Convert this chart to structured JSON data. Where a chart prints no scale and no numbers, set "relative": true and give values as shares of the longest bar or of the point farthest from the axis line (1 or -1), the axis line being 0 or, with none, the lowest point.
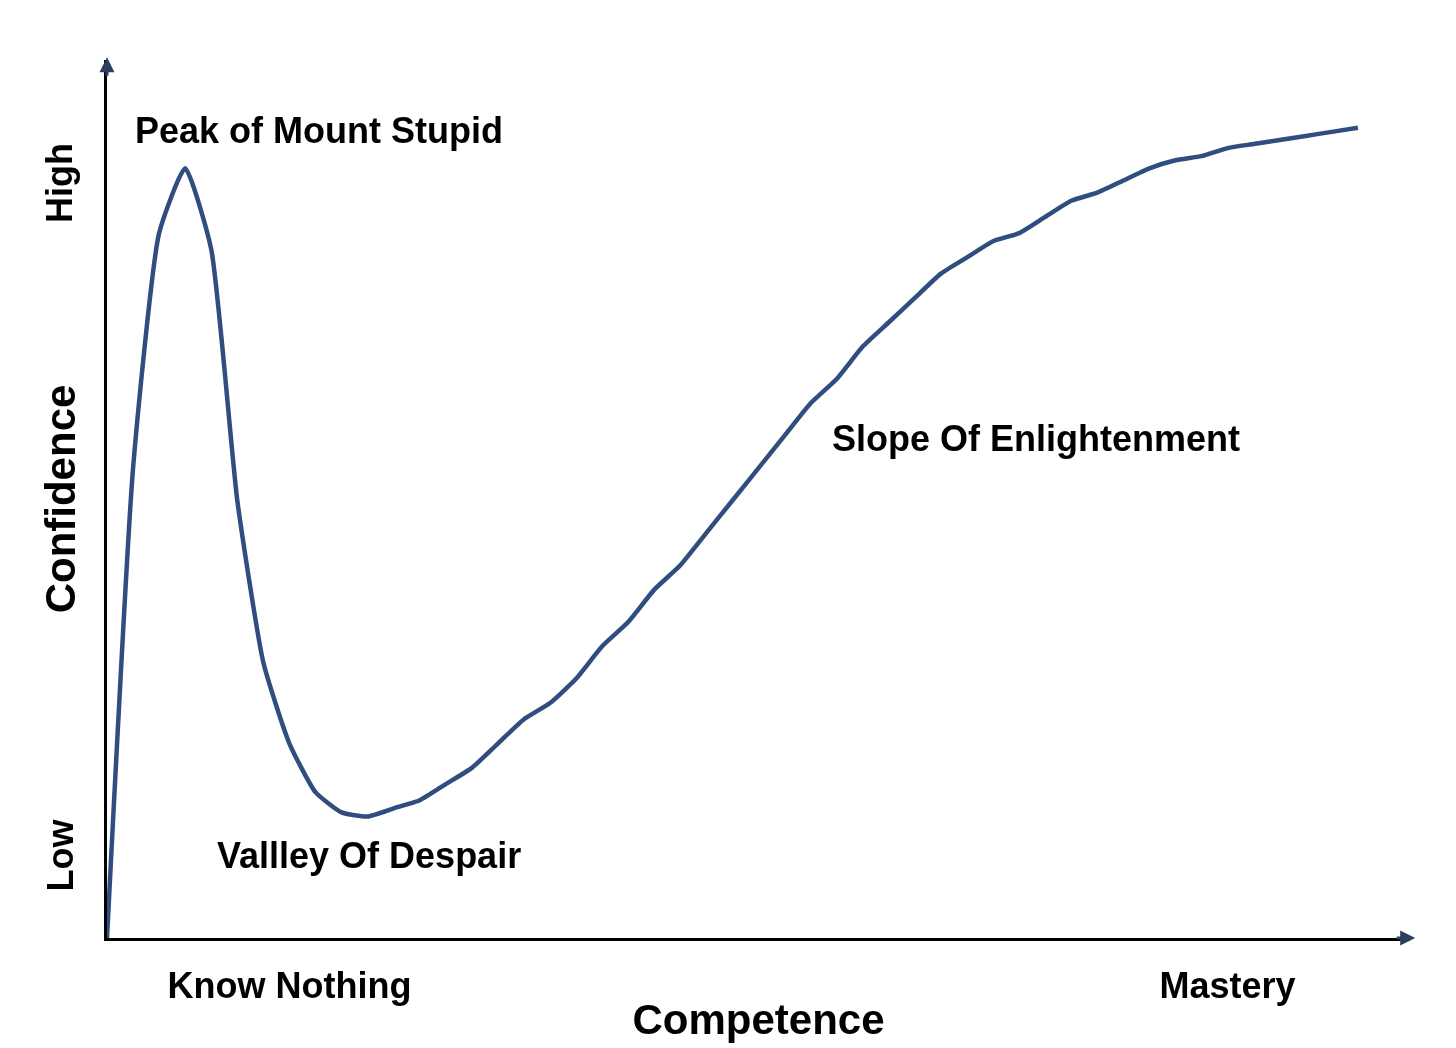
{
  "chart_data": {
    "type": "line",
    "relative": true,
    "xlabel": "Competence",
    "ylabel": "Confidence",
    "categories": [
      null,
      null,
      null,
      null,
      null,
      null,
      null,
      "Know Nothing",
      null,
      null,
      null,
      null,
      null,
      null,
      null,
      null,
      null,
      null,
      null,
      null,
      null,
      null,
      null,
      null,
      null,
      null,
      null,
      null,
      null,
      null,
      null,
      null,
      null,
      null,
      null,
      null,
      null,
      null,
      null,
      null,
      null,
      null,
      null,
      "Mastery",
      null,
      null,
      null,
      null,
      null
    ],
    "series": [
      {
        "color": "#2f4d7e",
        "values": [
          0,
          0.58,
          0.87,
          0.95,
          0.85,
          0.54,
          0.34,
          0.24,
          0.18,
          0.155,
          0.15,
          0.16,
          0.17,
          0.19,
          0.21,
          0.24,
          0.27,
          0.29,
          0.32,
          0.36,
          0.39,
          0.43,
          0.46,
          0.5,
          0.54,
          0.58,
          0.62,
          0.66,
          0.69,
          0.73,
          0.76,
          0.79,
          0.82,
          0.84,
          0.86,
          0.87,
          0.89,
          0.91,
          0.92,
          0.935,
          0.95,
          0.96,
          0.965,
          0.975,
          0.98,
          0.985,
          0.99,
          0.995,
          1.0
        ]
      }
    ],
    "annotations": [
      "Peak of Mount Stupid",
      "Vallley Of Despair",
      "Slope Of Enlightenment",
      "Low",
      "High"
    ],
    "marker": "none",
    "line_style": "solid"
  }
}
